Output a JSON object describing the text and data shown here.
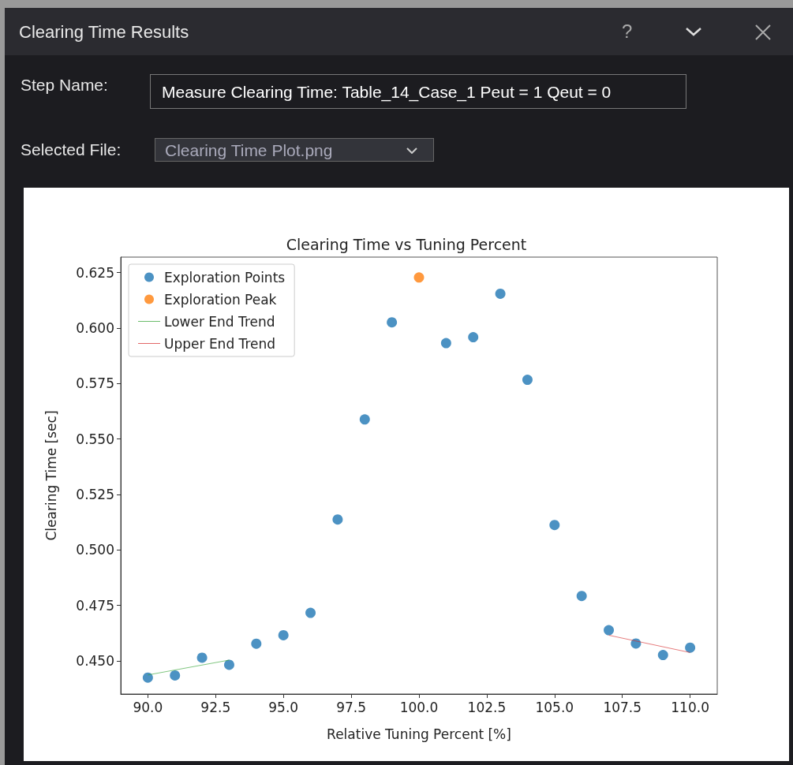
{
  "chart_data": {
    "type": "scatter",
    "title": "Clearing Time vs Tuning Percent",
    "xlabel": "Relative Tuning Percent [%]",
    "ylabel": "Clearing Time [sec]",
    "annotations": [
      "Clearing Time Results",
      "?",
      "Step Name:",
      "Measure Clearing Time: Table_14_Case_1 Peut = 1 Qeut = 0",
      "Selected File:",
      "Clearing Time Plot.png"
    ],
    "series": [
      {
        "name": "Exploration Points",
        "marker": "circle",
        "color": "#1f77b4",
        "x": [
          90,
          91,
          92,
          93,
          94,
          95,
          96,
          97,
          98,
          99,
          101,
          102,
          103,
          104,
          105,
          106,
          107,
          108,
          109,
          110
        ],
        "values": [
          0.4424,
          0.4434,
          0.4514,
          0.4482,
          0.4577,
          0.4615,
          0.4716,
          0.5137,
          0.5588,
          0.6026,
          0.5932,
          0.5959,
          0.6155,
          0.5767,
          0.5112,
          0.4792,
          0.4638,
          0.4578,
          0.4526,
          0.4559
        ]
      },
      {
        "name": "Exploration Peak",
        "marker": "circle",
        "color": "#ff7f0e",
        "x": [
          100
        ],
        "values": [
          0.6228
        ]
      },
      {
        "name": "Lower End Trend",
        "type": "line",
        "color": "#2ca02c",
        "marker": "none",
        "x": [
          90,
          93
        ],
        "values": [
          0.4436,
          0.4503
        ]
      },
      {
        "name": "Upper End Trend",
        "type": "line",
        "color": "#d62728",
        "marker": "none",
        "x": [
          107,
          110
        ],
        "values": [
          0.4615,
          0.4537
        ]
      }
    ],
    "grid": false,
    "legend": "top left",
    "xlim": [
      89,
      111
    ],
    "xticks": [
      {
        "value": 90,
        "label": "90.0"
      },
      {
        "value": 92.5,
        "label": "92.5"
      },
      {
        "value": 95,
        "label": "95.0"
      },
      {
        "value": 97.5,
        "label": "97.5"
      },
      {
        "value": 100,
        "label": "100.0"
      },
      {
        "value": 102.5,
        "label": "102.5"
      },
      {
        "value": 105,
        "label": "105.0"
      },
      {
        "value": 107.5,
        "label": "107.5"
      },
      {
        "value": 110,
        "label": "110.0"
      }
    ],
    "ylim": [
      0.435,
      0.632
    ],
    "yticks": [
      {
        "value": 0.45,
        "label": "0.450"
      },
      {
        "value": 0.475,
        "label": "0.475"
      },
      {
        "value": 0.5,
        "label": "0.500"
      },
      {
        "value": 0.525,
        "label": "0.525"
      },
      {
        "value": 0.55,
        "label": "0.550"
      },
      {
        "value": 0.575,
        "label": "0.575"
      },
      {
        "value": 0.6,
        "label": "0.600"
      },
      {
        "value": 0.625,
        "label": "0.625"
      }
    ]
  }
}
